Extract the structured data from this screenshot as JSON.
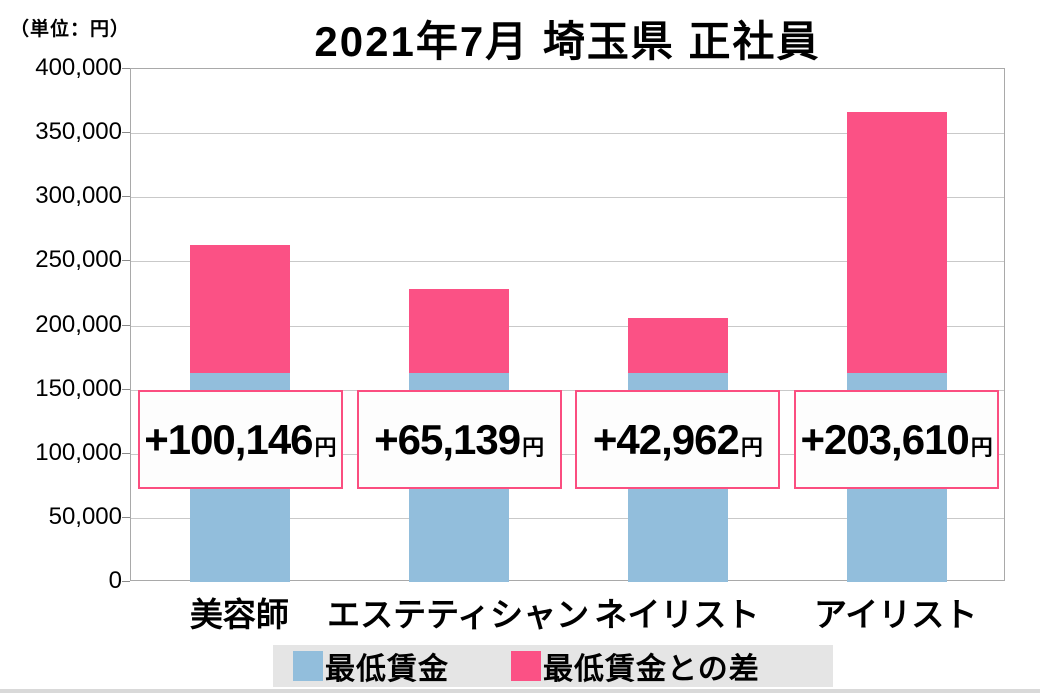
{
  "unit_label": "（単位：円）",
  "title": "2021年7月 埼玉県 正社員",
  "chart_data": {
    "type": "bar",
    "subtype": "stacked",
    "title": "2021年7月 埼玉県 正社員",
    "unit": "円",
    "categories": [
      "美容師",
      "エステティシャン",
      "ネイリスト",
      "アイリスト"
    ],
    "series": [
      {
        "name": "最低賃金",
        "color": "#92BEDC",
        "values": [
          163000,
          163000,
          163000,
          163000
        ]
      },
      {
        "name": "最低賃金との差",
        "color": "#FB5185",
        "values": [
          100146,
          65139,
          42962,
          203610
        ]
      }
    ],
    "difference_labels": [
      {
        "amount": "+100,146",
        "suffix": "円"
      },
      {
        "amount": "+65,139",
        "suffix": "円"
      },
      {
        "amount": "+42,962",
        "suffix": "円"
      },
      {
        "amount": "+203,610",
        "suffix": "円"
      }
    ],
    "y_axis": {
      "ticks": [
        "400,000",
        "350,000",
        "300,000",
        "250,000",
        "200,000",
        "150,000",
        "100,000",
        "50,000",
        "0"
      ],
      "ylim": [
        0,
        400000
      ],
      "grid": true
    },
    "legend_position": "bottom"
  },
  "legend": {
    "items": [
      {
        "label": "最低賃金",
        "color": "#92BEDC"
      },
      {
        "label": "最低賃金との差",
        "color": "#FB5185"
      }
    ]
  },
  "colors": {
    "grid": "#c9c9c9",
    "plot_border": "#a9a9a9",
    "tick": "#8a8a8a",
    "annotation_border": "#fb4e80",
    "legend_bg": "#e5e5e5",
    "bottom_rule": "#d9d9d9"
  }
}
